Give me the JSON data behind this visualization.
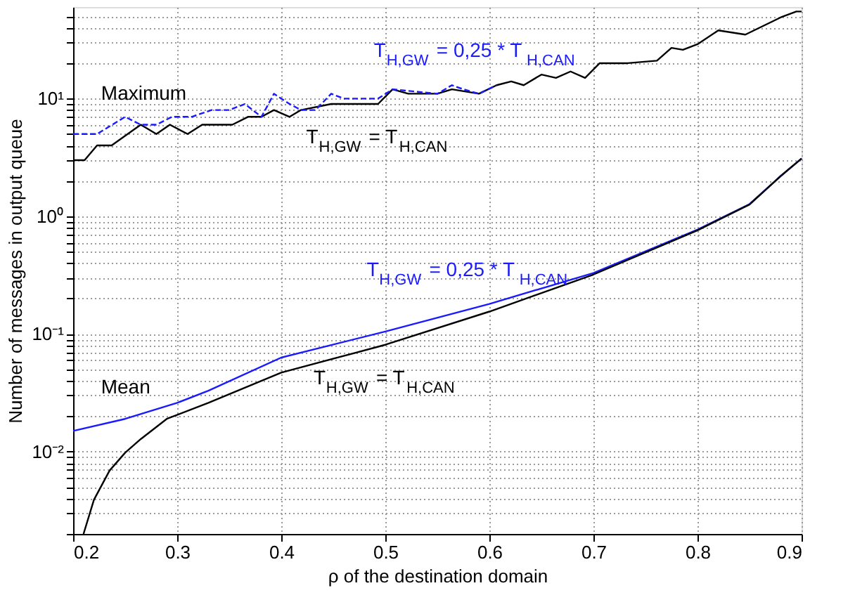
{
  "chart_data": {
    "type": "line",
    "xlabel": "ρ of the destination domain",
    "ylabel": "Number of messages in output queue",
    "log": "y",
    "grid": true,
    "marker": "none",
    "xlim": [
      0.2,
      0.9
    ],
    "xticks": [
      0.2,
      0.3,
      0.4,
      0.5,
      0.6,
      0.7,
      0.8,
      0.9
    ],
    "ylim": [
      0.002,
      60
    ],
    "yticks": [
      {
        "value": 0.002,
        "label": null
      },
      {
        "value": 0.003,
        "label": null
      },
      {
        "value": 0.004,
        "label": null
      },
      {
        "value": 0.005,
        "label": null
      },
      {
        "value": 0.006,
        "label": null
      },
      {
        "value": 0.007,
        "label": null
      },
      {
        "value": 0.008,
        "label": null
      },
      {
        "value": 0.009,
        "label": null
      },
      {
        "value": 0.01,
        "label": "10⁻²"
      },
      {
        "value": 0.02,
        "label": null
      },
      {
        "value": 0.03,
        "label": null
      },
      {
        "value": 0.04,
        "label": null
      },
      {
        "value": 0.05,
        "label": null
      },
      {
        "value": 0.06,
        "label": null
      },
      {
        "value": 0.07,
        "label": null
      },
      {
        "value": 0.08,
        "label": null
      },
      {
        "value": 0.09,
        "label": null
      },
      {
        "value": 0.1,
        "label": "10⁻¹"
      },
      {
        "value": 0.2,
        "label": null
      },
      {
        "value": 0.3,
        "label": null
      },
      {
        "value": 0.4,
        "label": null
      },
      {
        "value": 0.5,
        "label": null
      },
      {
        "value": 0.6,
        "label": null
      },
      {
        "value": 0.7,
        "label": null
      },
      {
        "value": 0.8,
        "label": null
      },
      {
        "value": 0.9,
        "label": null
      },
      {
        "value": 1,
        "label": "10⁰"
      },
      {
        "value": 2,
        "label": null
      },
      {
        "value": 3,
        "label": null
      },
      {
        "value": 4,
        "label": null
      },
      {
        "value": 5,
        "label": null
      },
      {
        "value": 6,
        "label": null
      },
      {
        "value": 7,
        "label": null
      },
      {
        "value": 8,
        "label": null
      },
      {
        "value": 9,
        "label": null
      },
      {
        "value": 10,
        "label": "10¹"
      },
      {
        "value": 20,
        "label": null
      },
      {
        "value": 30,
        "label": null
      },
      {
        "value": 40,
        "label": null
      },
      {
        "value": 50,
        "label": null
      }
    ],
    "series": [
      {
        "name": "T$_{H,GW}$ = 0,25 * T$_{H,CAN}$",
        "color": "#1a1aff",
        "line_style": "dashed",
        "x": [
          0.2,
          0.223,
          0.25,
          0.265,
          0.28,
          0.295,
          0.314,
          0.333,
          0.35,
          0.365,
          0.381,
          0.393,
          0.408,
          0.419,
          0.433,
          0.448,
          0.46,
          0.493,
          0.507,
          0.55,
          0.564,
          0.575,
          0.59,
          0.607
        ],
        "values": [
          5,
          5,
          7,
          6,
          6,
          7,
          7,
          8,
          8,
          9,
          7,
          11,
          9,
          8,
          8,
          11,
          10,
          10,
          12,
          11,
          13,
          12,
          11,
          13
        ]
      },
      {
        "name": "T$_{H,GW}$ = T$_{H,CAN}$",
        "color": "#000000",
        "line_style": "solid",
        "x": [
          0.2,
          0.211,
          0.223,
          0.237,
          0.265,
          0.28,
          0.293,
          0.31,
          0.324,
          0.353,
          0.368,
          0.381,
          0.393,
          0.408,
          0.419,
          0.448,
          0.493,
          0.507,
          0.522,
          0.55,
          0.564,
          0.59,
          0.607,
          0.621,
          0.633,
          0.65,
          0.664,
          0.678,
          0.692,
          0.706,
          0.733,
          0.761,
          0.775,
          0.786,
          0.8,
          0.82,
          0.846,
          0.88,
          0.895,
          0.9
        ],
        "values": [
          3,
          3,
          4,
          4,
          6,
          5,
          6,
          5,
          6,
          6,
          7,
          7,
          8,
          7,
          8,
          9,
          9,
          12,
          11,
          11,
          12,
          11,
          13,
          14,
          13,
          16,
          15,
          17,
          15,
          20,
          20,
          21,
          27,
          26,
          29,
          38,
          35,
          49,
          55,
          55
        ]
      },
      {
        "name": "T$_{H,GW}$ = 0,25 * T$_{H,CAN}$",
        "color": "#1a1aff",
        "line_style": "solid",
        "x": [
          0.2,
          0.25,
          0.3,
          0.33,
          0.4,
          0.5,
          0.6,
          0.7,
          0.8,
          0.85,
          0.88,
          0.9
        ],
        "values": [
          0.015,
          0.019,
          0.026,
          0.033,
          0.063,
          0.105,
          0.18,
          0.33,
          0.77,
          1.27,
          2.2,
          3.1
        ]
      },
      {
        "name": "T$_{H,GW}$ = T$_{H,CAN}$",
        "color": "#000000",
        "line_style": "solid",
        "x": [
          0.21,
          0.22,
          0.235,
          0.25,
          0.265,
          0.29,
          0.33,
          0.4,
          0.5,
          0.6,
          0.7,
          0.8,
          0.85,
          0.88,
          0.9
        ],
        "values": [
          0.002,
          0.0039,
          0.0069,
          0.0098,
          0.0128,
          0.019,
          0.026,
          0.047,
          0.081,
          0.155,
          0.32,
          0.76,
          1.26,
          2.2,
          3.1
        ]
      }
    ],
    "annotations": [
      "Maximum",
      "Mean"
    ]
  }
}
